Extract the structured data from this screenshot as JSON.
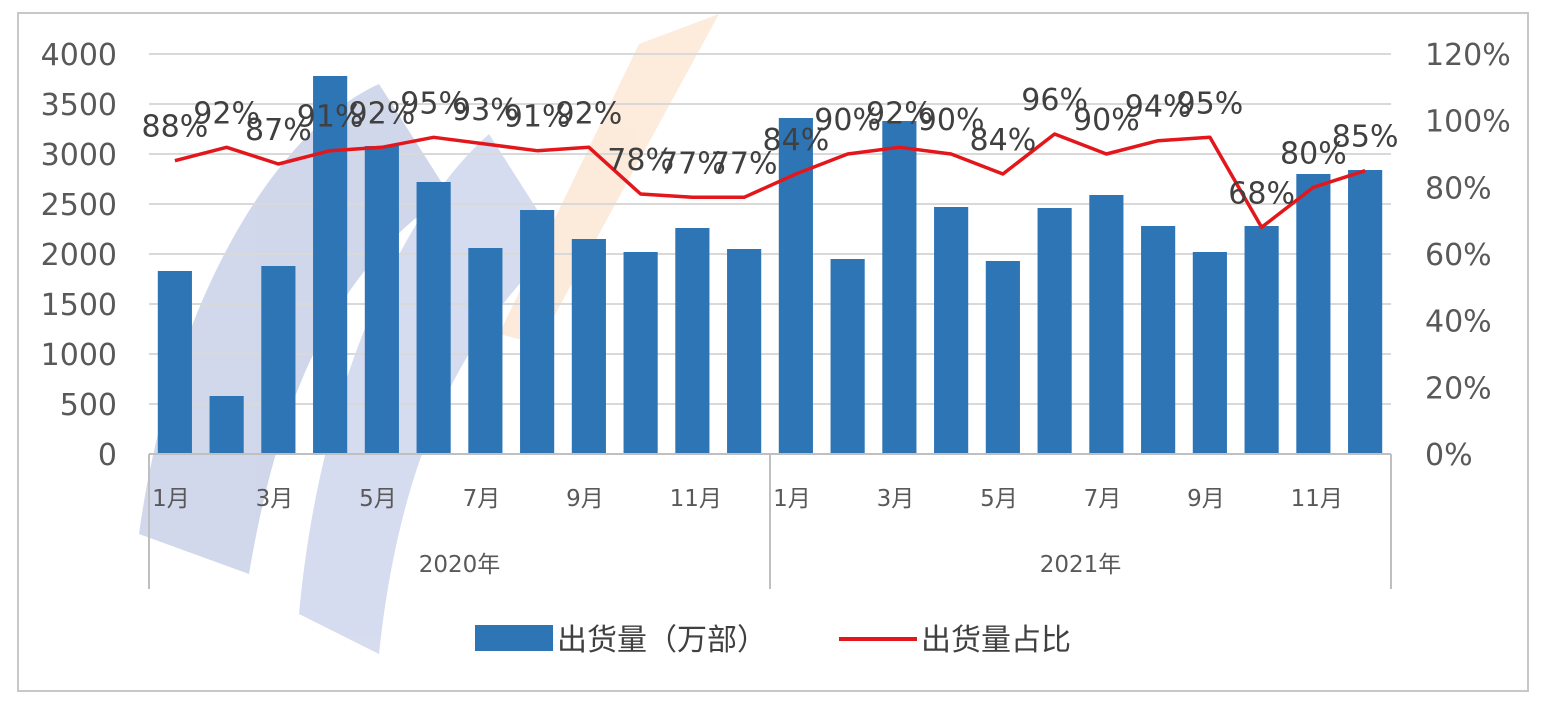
{
  "chart_data": {
    "type": "bar",
    "categories": [
      "1月",
      "",
      "3月",
      "",
      "5月",
      "",
      "7月",
      "",
      "9月",
      "",
      "11月",
      "",
      "1月",
      "",
      "3月",
      "",
      "5月",
      "",
      "7月",
      "",
      "9月",
      "",
      "11月",
      ""
    ],
    "groups": [
      {
        "label": "2020年",
        "span": 12
      },
      {
        "label": "2021年",
        "span": 12
      }
    ],
    "series": [
      {
        "name": "出货量（万部）",
        "kind": "bar",
        "axis": "left",
        "color": "#2E75B6",
        "values": [
          1830,
          580,
          1880,
          3780,
          3080,
          2720,
          2060,
          2440,
          2150,
          2020,
          2260,
          2050,
          3360,
          1950,
          3330,
          2470,
          1930,
          2460,
          2590,
          2280,
          2020,
          2280,
          2800,
          2840
        ]
      },
      {
        "name": "出货量占比",
        "kind": "line",
        "axis": "right",
        "color": "#E3171B",
        "values": [
          88,
          92,
          87,
          91,
          92,
          95,
          93,
          91,
          92,
          78,
          77,
          77,
          84,
          90,
          92,
          90,
          84,
          96,
          90,
          94,
          95,
          68,
          80,
          85
        ],
        "labels": [
          "88%",
          "92%",
          "87%",
          "91%",
          "92%",
          "95%",
          "93%",
          "91%",
          "92%",
          "78%",
          "77%",
          "77%",
          "84%",
          "90%",
          "92%",
          "90%",
          "84%",
          "96%",
          "90%",
          "94%",
          "95%",
          "68%",
          "80%",
          "85%"
        ]
      }
    ],
    "y_left": {
      "ticks": [
        "0",
        "500",
        "1000",
        "1500",
        "2000",
        "2500",
        "3000",
        "3500",
        "4000"
      ],
      "ylim": [
        0,
        4000
      ]
    },
    "y_right": {
      "ticks": [
        "0%",
        "20%",
        "40%",
        "60%",
        "80%",
        "100%",
        "120%"
      ],
      "ylim": [
        0,
        120
      ]
    },
    "grid": true,
    "legend": {
      "position": "bottom",
      "items": [
        "出货量（万部）",
        "出货量占比"
      ]
    }
  }
}
